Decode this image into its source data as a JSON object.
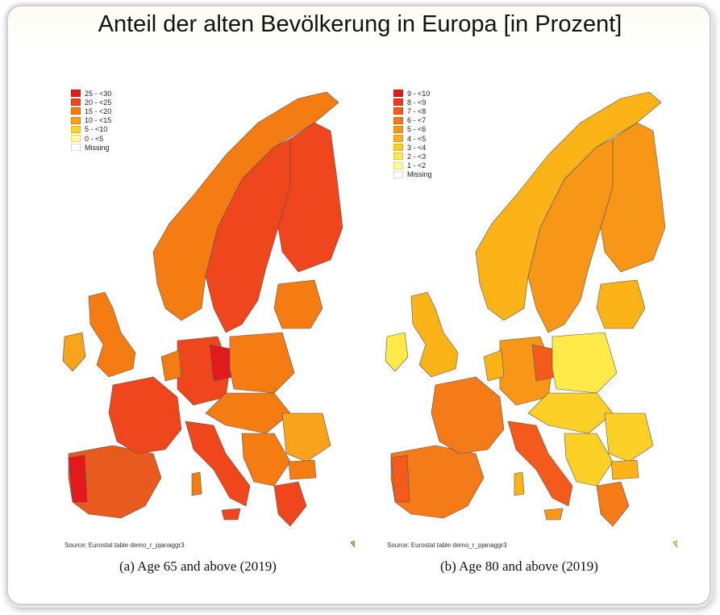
{
  "title": "Anteil der alten Bevölkerung in Europa [in Prozent]",
  "panels": [
    {
      "caption": "(a) Age 65 and above (2019)",
      "source": "Source: Eurostat table demo_r_pjanaggr3",
      "legend": [
        {
          "label": "25 - <30",
          "color": "#e31a1c"
        },
        {
          "label": "20 - <25",
          "color": "#f0461e"
        },
        {
          "label": "15 - <20",
          "color": "#f47c13"
        },
        {
          "label": "10 - <15",
          "color": "#f9a21c"
        },
        {
          "label": "5 - <10",
          "color": "#ffd52e"
        },
        {
          "label": "0 - <5",
          "color": "#ffff9e"
        },
        {
          "label": "Missing",
          "color": "#ffffff"
        }
      ]
    },
    {
      "caption": "(b) Age 80 and above (2019)",
      "source": "Source: Eurostat table demo_r_pjanaggr3",
      "legend": [
        {
          "label": "9 - <10",
          "color": "#e31a1c"
        },
        {
          "label": "8 - <9",
          "color": "#ee3a1f"
        },
        {
          "label": "7 - <8",
          "color": "#f35a1c"
        },
        {
          "label": "6 - <7",
          "color": "#f57a18"
        },
        {
          "label": "5 - <6",
          "color": "#f89617"
        },
        {
          "label": "4 - <5",
          "color": "#fbb318"
        },
        {
          "label": "3 - <4",
          "color": "#fdd027"
        },
        {
          "label": "2 - <3",
          "color": "#ffea4a"
        },
        {
          "label": "1 - <2",
          "color": "#ffff99"
        },
        {
          "label": "Missing",
          "color": "#ffffff"
        }
      ]
    }
  ]
}
